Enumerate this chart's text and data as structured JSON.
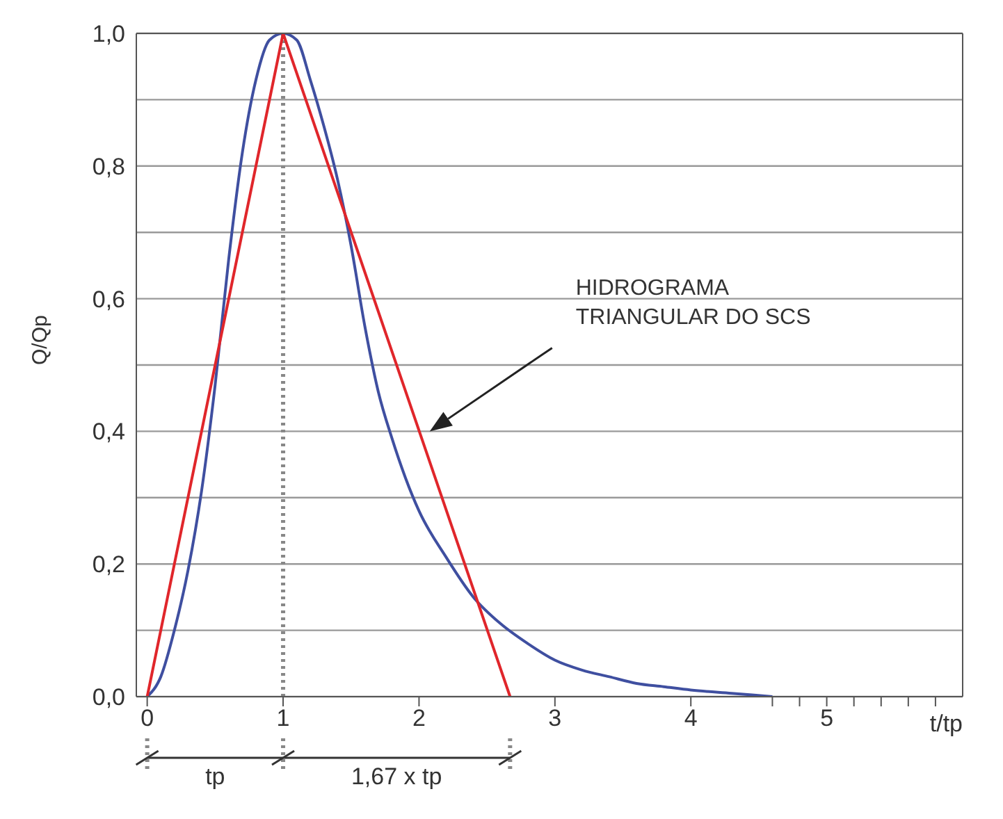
{
  "chart_data": {
    "type": "line",
    "xlabel": "t/tp",
    "ylabel": "Q/Qp",
    "xlim": [
      -0.08,
      6.0
    ],
    "ylim": [
      0,
      1.0
    ],
    "xticks": [
      0,
      1,
      2,
      3,
      4,
      {
        "value": 4.6,
        "label": null
      },
      {
        "value": 4.8,
        "label": null
      },
      5,
      {
        "value": 5.2,
        "label": null
      },
      {
        "value": 5.4,
        "label": null
      },
      {
        "value": 5.6,
        "label": null
      },
      {
        "value": 5.8,
        "label": null
      }
    ],
    "yticks": [
      {
        "value": 0,
        "label": "0,0"
      },
      {
        "value": 0.1,
        "label": null
      },
      {
        "value": 0.2,
        "label": "0,2"
      },
      {
        "value": 0.3,
        "label": null
      },
      {
        "value": 0.4,
        "label": "0,4"
      },
      {
        "value": 0.5,
        "label": null
      },
      {
        "value": 0.6,
        "label": "0,6"
      },
      {
        "value": 0.7,
        "label": null
      },
      {
        "value": 0.8,
        "label": "0,8"
      },
      {
        "value": 0.9,
        "label": null
      },
      {
        "value": 1.0,
        "label": "1,0"
      }
    ],
    "grid": "y",
    "series": [
      {
        "color": "#3f4fa0",
        "x": [
          0,
          0.1,
          0.2,
          0.3,
          0.4,
          0.5,
          0.6,
          0.7,
          0.8,
          0.9,
          1.0,
          1.1,
          1.2,
          1.3,
          1.4,
          1.5,
          1.6,
          1.7,
          1.8,
          1.9,
          2.0,
          2.2,
          2.4,
          2.6,
          2.8,
          3.0,
          3.2,
          3.4,
          3.6,
          3.8,
          4.0,
          4.3,
          4.6
        ],
        "values": [
          0,
          0.03,
          0.1,
          0.19,
          0.31,
          0.47,
          0.66,
          0.82,
          0.93,
          0.99,
          1.0,
          0.99,
          0.93,
          0.86,
          0.78,
          0.68,
          0.56,
          0.46,
          0.39,
          0.33,
          0.28,
          0.21,
          0.15,
          0.11,
          0.08,
          0.055,
          0.04,
          0.03,
          0.02,
          0.015,
          0.01,
          0.005,
          0
        ]
      },
      {
        "color": "#e0262b",
        "x": [
          0,
          1,
          2.67
        ],
        "values": [
          0,
          1,
          0
        ]
      }
    ],
    "ref_lines": [
      {
        "axis": "x",
        "value": 1,
        "line_style": "dotted",
        "color": "#888888"
      }
    ],
    "annotations": [
      "HIDROGRAMA TRIANGULAR DO SCS",
      "tp",
      "1,67 x tp"
    ]
  }
}
